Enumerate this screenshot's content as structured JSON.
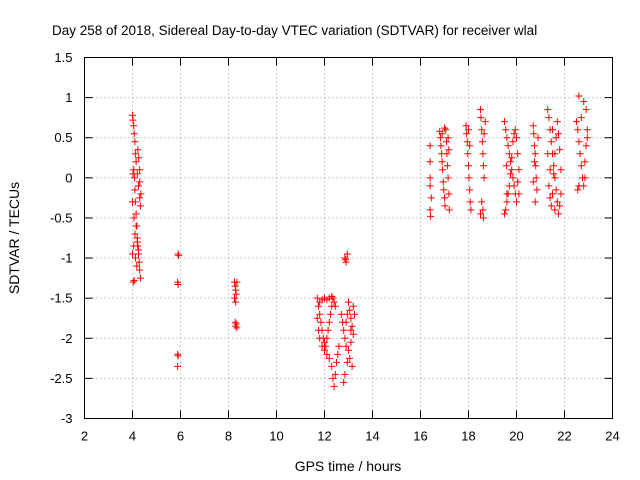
{
  "chart_data": {
    "type": "scatter",
    "title": "Day 258 of 2018, Sidereal Day-to-day VTEC variation (SDTVAR) for receiver wlal",
    "xlabel": "GPS time / hours",
    "ylabel": "SDTVAR / TECUs",
    "xlim": [
      2,
      24
    ],
    "ylim": [
      -3,
      1.5
    ],
    "x_ticks": [
      2,
      4,
      6,
      8,
      10,
      12,
      14,
      16,
      18,
      20,
      22,
      24
    ],
    "y_ticks": [
      -3,
      -2.5,
      -2,
      -1.5,
      -1,
      -0.5,
      0,
      0.5,
      1,
      1.5
    ],
    "x_tick_labels": [
      "2",
      "4",
      "6",
      "8",
      "10",
      "12",
      "14",
      "16",
      "18",
      "20",
      "22",
      "24"
    ],
    "y_tick_labels": [
      "-3",
      "-2.5",
      "-2",
      "-1.5",
      "-1",
      "-0.5",
      "0",
      "0.5",
      "1",
      "1.5"
    ],
    "grid": true,
    "marker": "+",
    "series_color": "#ff0000",
    "series": [
      {
        "name": "SDTVAR",
        "points": [
          [
            4.0,
            0.78
          ],
          [
            4.02,
            0.72
          ],
          [
            4.05,
            0.65
          ],
          [
            4.07,
            0.55
          ],
          [
            4.1,
            0.45
          ],
          [
            4.12,
            0.3
          ],
          [
            4.15,
            0.2
          ],
          [
            4.2,
            0.05
          ],
          [
            4.25,
            -0.1
          ],
          [
            4.3,
            -0.25
          ],
          [
            4.33,
            -0.35
          ],
          [
            4.05,
            0.1
          ],
          [
            4.08,
            0.0
          ],
          [
            4.1,
            -0.15
          ],
          [
            4.12,
            -0.3
          ],
          [
            4.15,
            -0.45
          ],
          [
            4.18,
            -0.6
          ],
          [
            4.2,
            -0.75
          ],
          [
            4.22,
            -0.85
          ],
          [
            4.25,
            -0.95
          ],
          [
            4.28,
            -1.05
          ],
          [
            4.3,
            -1.15
          ],
          [
            4.33,
            -1.25
          ],
          [
            4.0,
            -0.95
          ],
          [
            4.05,
            -0.85
          ],
          [
            4.1,
            -0.7
          ],
          [
            4.15,
            -0.6
          ],
          [
            4.2,
            -0.8
          ],
          [
            4.25,
            -0.9
          ],
          [
            4.03,
            -1.3
          ],
          [
            4.07,
            -1.28
          ],
          [
            4.12,
            -1.0
          ],
          [
            4.18,
            -1.1
          ],
          [
            4.22,
            0.35
          ],
          [
            4.26,
            0.25
          ],
          [
            4.3,
            0.1
          ],
          [
            4.3,
            -0.05
          ],
          [
            4.35,
            -0.2
          ],
          [
            4.02,
            0.05
          ],
          [
            4.0,
            -0.3
          ],
          [
            4.06,
            -0.5
          ],
          [
            5.9,
            -0.95
          ],
          [
            5.92,
            -0.97
          ],
          [
            5.88,
            -1.3
          ],
          [
            5.9,
            -1.33
          ],
          [
            5.88,
            -2.2
          ],
          [
            5.9,
            -2.22
          ],
          [
            5.88,
            -2.35
          ],
          [
            8.25,
            -1.3
          ],
          [
            8.28,
            -1.35
          ],
          [
            8.3,
            -1.4
          ],
          [
            8.32,
            -1.45
          ],
          [
            8.25,
            -1.5
          ],
          [
            8.3,
            -1.55
          ],
          [
            8.35,
            -1.3
          ],
          [
            8.28,
            -1.8
          ],
          [
            8.3,
            -1.85
          ],
          [
            8.35,
            -1.87
          ],
          [
            8.32,
            -1.82
          ],
          [
            11.7,
            -1.5
          ],
          [
            11.75,
            -1.6
          ],
          [
            11.8,
            -1.7
          ],
          [
            11.85,
            -1.8
          ],
          [
            11.9,
            -1.9
          ],
          [
            11.95,
            -2.0
          ],
          [
            12.0,
            -2.05
          ],
          [
            12.05,
            -2.1
          ],
          [
            12.1,
            -2.0
          ],
          [
            12.15,
            -1.9
          ],
          [
            12.2,
            -1.8
          ],
          [
            12.25,
            -1.7
          ],
          [
            12.3,
            -1.6
          ],
          [
            12.35,
            -1.5
          ],
          [
            12.4,
            -1.55
          ],
          [
            12.45,
            -1.6
          ],
          [
            11.8,
            -1.55
          ],
          [
            11.9,
            -1.52
          ],
          [
            12.0,
            -1.5
          ],
          [
            12.1,
            -1.52
          ],
          [
            12.2,
            -1.5
          ],
          [
            12.3,
            -1.48
          ],
          [
            11.7,
            -1.75
          ],
          [
            11.75,
            -1.9
          ],
          [
            11.8,
            -2.0
          ],
          [
            11.9,
            -2.1
          ],
          [
            12.0,
            -2.15
          ],
          [
            12.1,
            -2.2
          ],
          [
            12.2,
            -2.25
          ],
          [
            12.3,
            -2.35
          ],
          [
            12.35,
            -2.5
          ],
          [
            12.4,
            -2.6
          ],
          [
            12.45,
            -2.45
          ],
          [
            12.5,
            -2.3
          ],
          [
            12.55,
            -2.2
          ],
          [
            12.6,
            -2.1
          ],
          [
            12.7,
            -1.7
          ],
          [
            12.75,
            -1.8
          ],
          [
            12.8,
            -1.9
          ],
          [
            12.85,
            -2.0
          ],
          [
            12.9,
            -2.1
          ],
          [
            12.95,
            -2.3
          ],
          [
            12.85,
            -2.45
          ],
          [
            12.8,
            -2.55
          ],
          [
            12.85,
            -1.0
          ],
          [
            12.9,
            -1.05
          ],
          [
            12.95,
            -0.95
          ],
          [
            12.88,
            -1.02
          ],
          [
            13.0,
            -1.55
          ],
          [
            13.05,
            -1.65
          ],
          [
            13.1,
            -1.75
          ],
          [
            13.15,
            -1.85
          ],
          [
            13.2,
            -1.95
          ],
          [
            13.1,
            -2.05
          ],
          [
            13.0,
            -2.15
          ],
          [
            13.05,
            -2.25
          ],
          [
            13.15,
            -2.35
          ],
          [
            13.2,
            -1.6
          ],
          [
            13.25,
            -1.7
          ],
          [
            13.1,
            -1.9
          ],
          [
            12.95,
            -1.7
          ],
          [
            12.9,
            -1.8
          ],
          [
            16.4,
            0.4
          ],
          [
            16.4,
            0.2
          ],
          [
            16.4,
            0.0
          ],
          [
            16.4,
            -0.1
          ],
          [
            16.45,
            -0.25
          ],
          [
            16.4,
            -0.4
          ],
          [
            16.42,
            -0.48
          ],
          [
            16.8,
            0.58
          ],
          [
            16.83,
            0.5
          ],
          [
            16.85,
            0.4
          ],
          [
            16.88,
            0.3
          ],
          [
            16.9,
            0.2
          ],
          [
            16.92,
            0.1
          ],
          [
            16.95,
            -0.05
          ],
          [
            16.97,
            -0.15
          ],
          [
            17.0,
            -0.25
          ],
          [
            17.02,
            -0.35
          ],
          [
            17.05,
            0.6
          ],
          [
            17.08,
            0.45
          ],
          [
            17.1,
            0.3
          ],
          [
            17.12,
            0.15
          ],
          [
            17.15,
            0.0
          ],
          [
            17.18,
            -0.2
          ],
          [
            17.2,
            -0.4
          ],
          [
            16.9,
            0.55
          ],
          [
            17.0,
            0.62
          ],
          [
            17.15,
            0.5
          ],
          [
            17.18,
            0.35
          ],
          [
            17.9,
            0.65
          ],
          [
            17.92,
            0.55
          ],
          [
            17.95,
            0.45
          ],
          [
            17.97,
            0.3
          ],
          [
            18.0,
            0.15
          ],
          [
            18.02,
            0.0
          ],
          [
            18.05,
            -0.15
          ],
          [
            18.07,
            -0.3
          ],
          [
            18.1,
            -0.4
          ],
          [
            18.0,
            0.6
          ],
          [
            18.05,
            0.4
          ],
          [
            18.5,
            0.85
          ],
          [
            18.52,
            0.75
          ],
          [
            18.55,
            0.6
          ],
          [
            18.58,
            0.45
          ],
          [
            18.6,
            0.3
          ],
          [
            18.62,
            0.15
          ],
          [
            18.65,
            0.0
          ],
          [
            18.55,
            -0.3
          ],
          [
            18.6,
            -0.4
          ],
          [
            18.62,
            -0.5
          ],
          [
            18.5,
            -0.45
          ],
          [
            18.65,
            0.55
          ],
          [
            18.7,
            0.7
          ],
          [
            19.5,
            0.7
          ],
          [
            19.55,
            0.6
          ],
          [
            19.6,
            0.5
          ],
          [
            19.65,
            0.4
          ],
          [
            19.7,
            0.3
          ],
          [
            19.75,
            0.2
          ],
          [
            19.8,
            0.1
          ],
          [
            19.85,
            0.0
          ],
          [
            19.9,
            -0.1
          ],
          [
            19.95,
            -0.2
          ],
          [
            20.0,
            -0.3
          ],
          [
            19.55,
            -0.4
          ],
          [
            19.6,
            -0.3
          ],
          [
            19.65,
            -0.2
          ],
          [
            19.7,
            -0.1
          ],
          [
            19.75,
            0.05
          ],
          [
            19.8,
            0.25
          ],
          [
            19.85,
            0.45
          ],
          [
            19.9,
            0.55
          ],
          [
            19.95,
            0.6
          ],
          [
            20.0,
            0.5
          ],
          [
            20.05,
            0.3
          ],
          [
            20.1,
            0.1
          ],
          [
            20.1,
            -0.2
          ],
          [
            19.5,
            -0.45
          ],
          [
            19.58,
            0.15
          ],
          [
            20.05,
            -0.05
          ],
          [
            19.6,
            -0.2
          ],
          [
            20.7,
            0.65
          ],
          [
            20.72,
            0.55
          ],
          [
            20.75,
            0.4
          ],
          [
            20.78,
            0.3
          ],
          [
            20.8,
            0.15
          ],
          [
            20.82,
            0.0
          ],
          [
            20.85,
            -0.15
          ],
          [
            20.78,
            -0.3
          ],
          [
            20.7,
            -0.05
          ],
          [
            20.75,
            0.2
          ],
          [
            20.9,
            0.5
          ],
          [
            21.3,
            0.85
          ],
          [
            21.35,
            0.75
          ],
          [
            21.4,
            0.6
          ],
          [
            21.45,
            0.45
          ],
          [
            21.5,
            0.3
          ],
          [
            21.55,
            0.15
          ],
          [
            21.6,
            0.0
          ],
          [
            21.65,
            -0.15
          ],
          [
            21.7,
            -0.3
          ],
          [
            21.75,
            -0.45
          ],
          [
            21.35,
            -0.1
          ],
          [
            21.4,
            -0.25
          ],
          [
            21.45,
            -0.35
          ],
          [
            21.5,
            -0.2
          ],
          [
            21.55,
            0.05
          ],
          [
            21.6,
            0.3
          ],
          [
            21.65,
            0.5
          ],
          [
            21.7,
            0.7
          ],
          [
            21.75,
            0.55
          ],
          [
            21.8,
            0.35
          ],
          [
            21.85,
            0.1
          ],
          [
            21.85,
            -0.2
          ],
          [
            21.3,
            0.3
          ],
          [
            21.5,
            0.6
          ],
          [
            21.6,
            -0.4
          ],
          [
            21.8,
            -0.35
          ],
          [
            21.4,
            0.1
          ],
          [
            22.5,
            0.7
          ],
          [
            22.55,
            0.6
          ],
          [
            22.6,
            0.45
          ],
          [
            22.65,
            0.3
          ],
          [
            22.7,
            0.15
          ],
          [
            22.75,
            0.0
          ],
          [
            22.8,
            -0.1
          ],
          [
            22.85,
            0.2
          ],
          [
            22.9,
            0.4
          ],
          [
            22.95,
            0.6
          ],
          [
            22.6,
            1.02
          ],
          [
            22.8,
            0.95
          ],
          [
            22.9,
            0.85
          ],
          [
            22.7,
            0.75
          ],
          [
            22.55,
            -0.15
          ],
          [
            22.6,
            -0.1
          ],
          [
            22.85,
            0.0
          ],
          [
            22.95,
            0.5
          ]
        ]
      }
    ]
  }
}
